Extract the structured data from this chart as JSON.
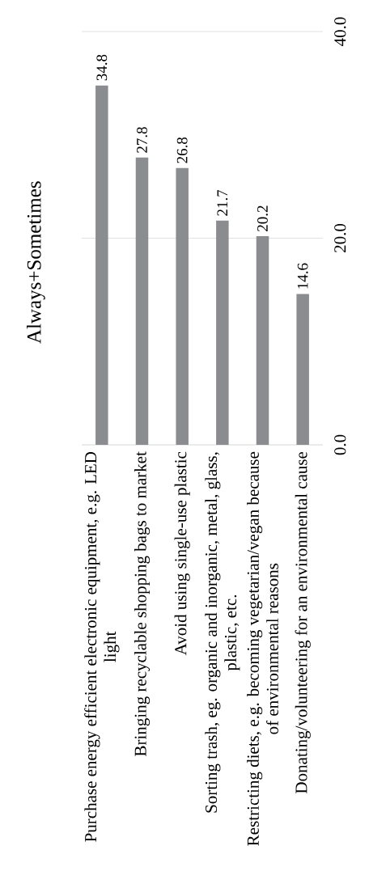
{
  "chart_data": {
    "type": "bar",
    "title": "Always+Sometimes",
    "categories": [
      "Purchase energy efficient electronic equipment, e.g. LED light",
      "Bringing recyclable shopping bags to market",
      "Avoid using single-use plastic",
      "Sorting trash, eg. organic and inorganic, metal, glass, plastic, etc.",
      "Restricting diets, e.g. becoming vegetarian/vegan because of environmental reasons",
      "Donating/volunteering for an environmental cause"
    ],
    "values": [
      34.8,
      27.8,
      26.8,
      21.7,
      20.2,
      14.6
    ],
    "color": "#8b8c90",
    "ylim": [
      0,
      40
    ],
    "yticks": [
      {
        "value": 0,
        "label": "0.0"
      },
      {
        "value": 20,
        "label": "20.0"
      },
      {
        "value": 40,
        "label": "40.0"
      }
    ],
    "grid": "y",
    "data_labels": true
  }
}
